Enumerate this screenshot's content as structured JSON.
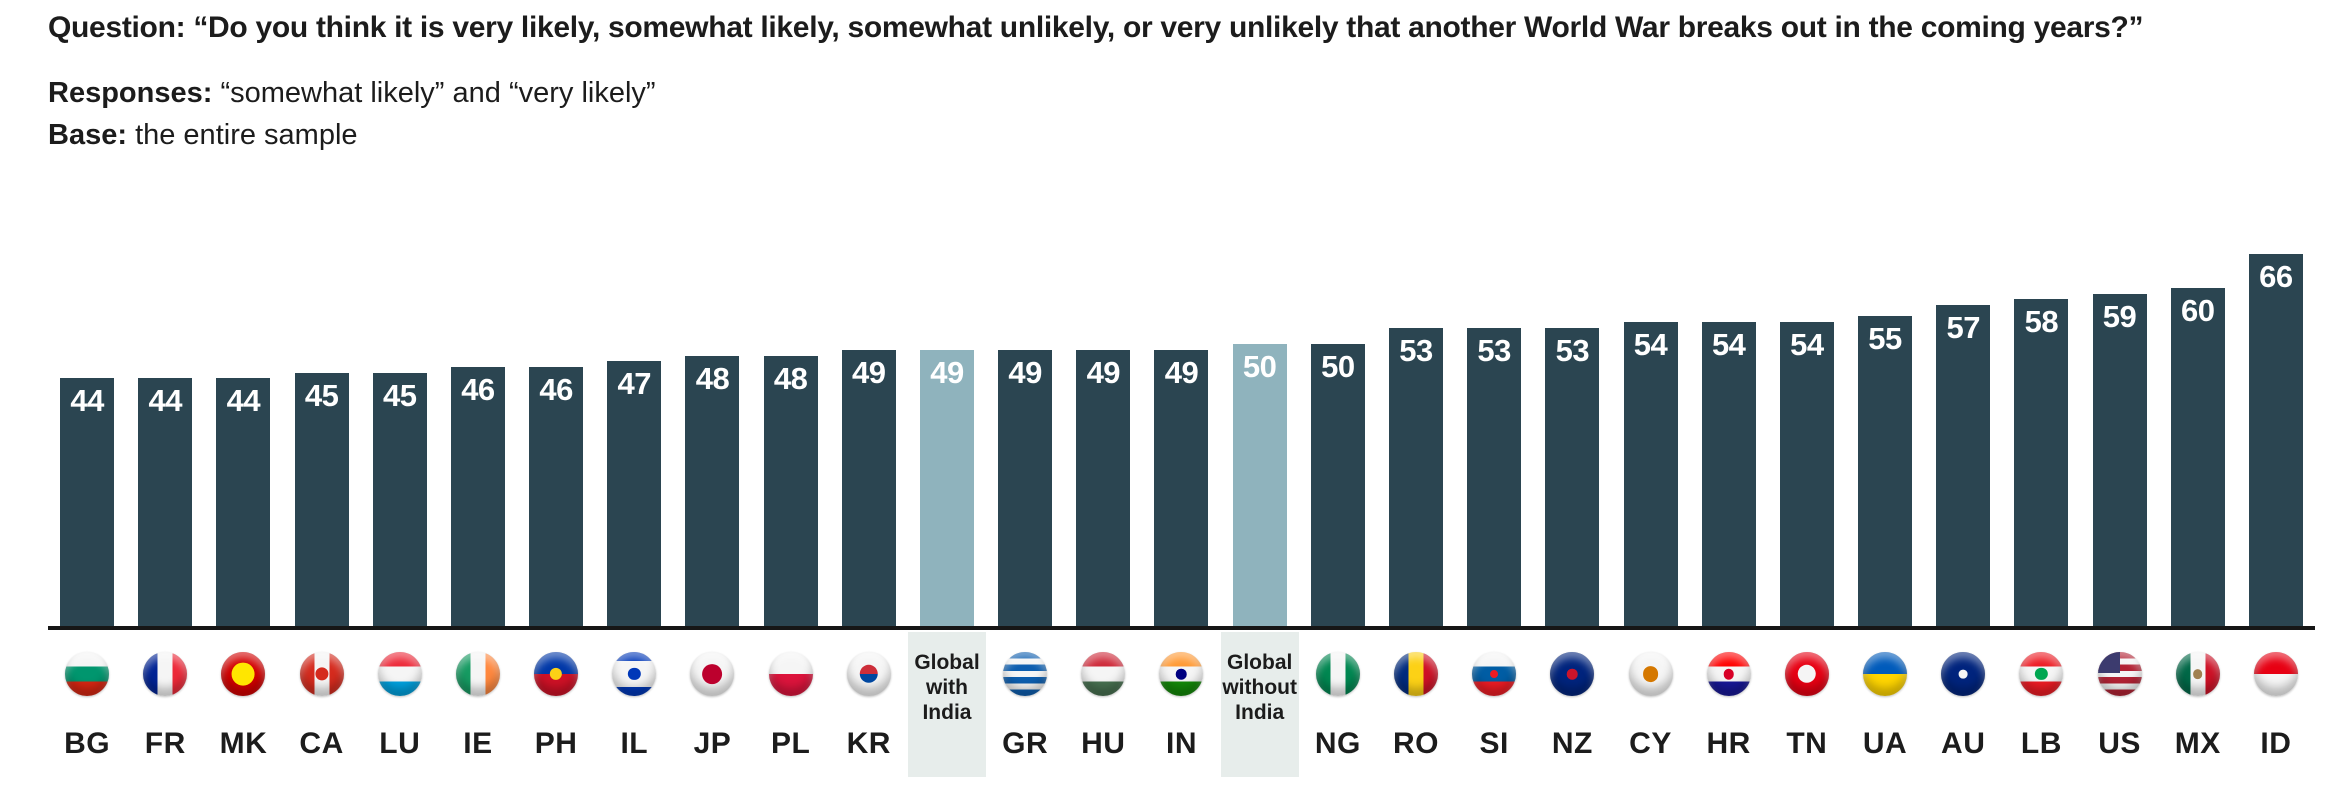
{
  "header": {
    "question_label": "Question:",
    "question_text": "“Do you think it is very likely, somewhat likely, somewhat unlikely, or very unlikely that another World War breaks out in the coming years?”",
    "responses_label": "Responses:",
    "responses_text": "“somewhat likely” and “very likely”",
    "base_label": "Base:",
    "base_text": "the entire sample"
  },
  "colors": {
    "bar_country": "#2B4551",
    "bar_global": "#8FB3BD",
    "highlight_column_bg": "#E7EDEB",
    "axis_line": "#161616",
    "bar_value_text": "#FFFFFF",
    "text": "#1C1C1C"
  },
  "chart_data": {
    "type": "bar",
    "title": "Question: “Do you think it is very likely, somewhat likely, somewhat unlikely, or very unlikely that another World War breaks out in the coming years?”",
    "subtitle": "Responses: “somewhat likely” and “very likely”",
    "note": "Base: the entire sample",
    "xlabel": "",
    "ylabel": "",
    "ylim": [
      0,
      66
    ],
    "grid": false,
    "legend": false,
    "data_labels": "inside bar top, white bold",
    "highlighted_categories": [
      "Global with India",
      "Global without India"
    ],
    "categories": [
      "BG",
      "FR",
      "MK",
      "CA",
      "LU",
      "IE",
      "PH",
      "IL",
      "JP",
      "PL",
      "KR",
      "Global with India",
      "GR",
      "HU",
      "IN",
      "Global without India",
      "NG",
      "RO",
      "SI",
      "NZ",
      "CY",
      "HR",
      "TN",
      "UA",
      "AU",
      "LB",
      "US",
      "MX",
      "ID"
    ],
    "values": [
      44,
      44,
      44,
      45,
      45,
      46,
      46,
      47,
      48,
      48,
      49,
      49,
      49,
      49,
      49,
      50,
      50,
      53,
      53,
      53,
      54,
      54,
      54,
      55,
      57,
      58,
      59,
      60,
      66
    ]
  },
  "bars": [
    {
      "id": "bg",
      "label": "BG",
      "value": 44,
      "type": "country",
      "flag": {
        "dir": "h",
        "stripes": [
          "#F5F5F5",
          "#00966E",
          "#D62612"
        ]
      }
    },
    {
      "id": "fr",
      "label": "FR",
      "value": 44,
      "type": "country",
      "flag": {
        "dir": "v",
        "stripes": [
          "#002395",
          "#F5F5F5",
          "#ED2939"
        ]
      }
    },
    {
      "id": "mk",
      "label": "MK",
      "value": 44,
      "type": "country",
      "flag": {
        "dir": "h",
        "stripes": [
          "#D20000"
        ],
        "dot": "#FFE600",
        "dot_size": 52
      }
    },
    {
      "id": "ca",
      "label": "CA",
      "value": 45,
      "type": "country",
      "flag": {
        "dir": "v",
        "stripes": [
          "#D52B1E",
          "#F5F5F5",
          "#D52B1E"
        ],
        "dot": "#D52B1E",
        "dot_size": 30
      }
    },
    {
      "id": "lu",
      "label": "LU",
      "value": 45,
      "type": "country",
      "flag": {
        "dir": "h",
        "stripes": [
          "#ED2939",
          "#F5F5F5",
          "#00A1DE"
        ]
      }
    },
    {
      "id": "ie",
      "label": "IE",
      "value": 46,
      "type": "country",
      "flag": {
        "dir": "v",
        "stripes": [
          "#169B62",
          "#F5F5F5",
          "#FF883E"
        ]
      }
    },
    {
      "id": "ph",
      "label": "PH",
      "value": 46,
      "type": "country",
      "flag": {
        "dir": "h",
        "stripes": [
          "#0038A8",
          "#CE1126"
        ],
        "dot": "#FCD116",
        "dot_size": 28
      }
    },
    {
      "id": "il",
      "label": "IL",
      "value": 47,
      "type": "country",
      "flag": {
        "dir": "h",
        "stripes": [
          "#0038B8",
          "#F5F5F5",
          "#F5F5F5",
          "#F5F5F5",
          "#0038B8"
        ],
        "dot": "#0038B8",
        "dot_size": 28
      }
    },
    {
      "id": "jp",
      "label": "JP",
      "value": 48,
      "type": "country",
      "flag": {
        "dir": "h",
        "stripes": [
          "#F5F5F5"
        ],
        "dot": "#BC002D",
        "dot_size": 45
      }
    },
    {
      "id": "pl",
      "label": "PL",
      "value": 48,
      "type": "country",
      "flag": {
        "dir": "h",
        "stripes": [
          "#F5F5F5",
          "#DC143C"
        ]
      }
    },
    {
      "id": "kr",
      "label": "KR",
      "value": 49,
      "type": "country",
      "flag": {
        "dir": "h",
        "stripes": [
          "#F5F5F5"
        ],
        "dot": [
          "#CD2E3A",
          "#0047A0"
        ],
        "dot_size": 42
      }
    },
    {
      "id": "global-with-india",
      "label": "Global with India",
      "value": 49,
      "type": "global"
    },
    {
      "id": "gr",
      "label": "GR",
      "value": 49,
      "type": "country",
      "flag": {
        "dir": "h",
        "stripes": [
          "#0D5EAF",
          "#F5F5F5",
          "#0D5EAF",
          "#F5F5F5",
          "#0D5EAF",
          "#F5F5F5",
          "#0D5EAF"
        ]
      }
    },
    {
      "id": "hu",
      "label": "HU",
      "value": 49,
      "type": "country",
      "flag": {
        "dir": "h",
        "stripes": [
          "#CE2939",
          "#F5F5F5",
          "#477050"
        ]
      }
    },
    {
      "id": "in",
      "label": "IN",
      "value": 49,
      "type": "country",
      "flag": {
        "dir": "h",
        "stripes": [
          "#FF9933",
          "#F5F5F5",
          "#138808"
        ],
        "dot": "#000080",
        "dot_size": 24
      }
    },
    {
      "id": "global-without-india",
      "label": "Global without India",
      "value": 50,
      "type": "global"
    },
    {
      "id": "ng",
      "label": "NG",
      "value": 50,
      "type": "country",
      "flag": {
        "dir": "v",
        "stripes": [
          "#008751",
          "#F5F5F5",
          "#008751"
        ]
      }
    },
    {
      "id": "ro",
      "label": "RO",
      "value": 53,
      "type": "country",
      "flag": {
        "dir": "v",
        "stripes": [
          "#002B7F",
          "#FCD116",
          "#CE1126"
        ]
      }
    },
    {
      "id": "si",
      "label": "SI",
      "value": 53,
      "type": "country",
      "flag": {
        "dir": "h",
        "stripes": [
          "#F5F5F5",
          "#005DA4",
          "#ED1C24"
        ],
        "dot": "#ED1C24",
        "dot_size": 18
      }
    },
    {
      "id": "nz",
      "label": "NZ",
      "value": 53,
      "type": "country",
      "flag": {
        "dir": "h",
        "stripes": [
          "#00247D"
        ],
        "dot": "#CC142B",
        "dot_size": 24
      }
    },
    {
      "id": "cy",
      "label": "CY",
      "value": 54,
      "type": "country",
      "flag": {
        "dir": "h",
        "stripes": [
          "#F5F5F5"
        ],
        "dot": "#D57800",
        "dot_size": 36
      }
    },
    {
      "id": "hr",
      "label": "HR",
      "value": 54,
      "type": "country",
      "flag": {
        "dir": "h",
        "stripes": [
          "#FF0000",
          "#F5F5F5",
          "#171796"
        ],
        "dot": "#D80027",
        "dot_size": 24
      }
    },
    {
      "id": "tn",
      "label": "TN",
      "value": 54,
      "type": "country",
      "flag": {
        "dir": "h",
        "stripes": [
          "#E70013"
        ],
        "dot": "#F5F5F5",
        "dot_size": 42
      }
    },
    {
      "id": "ua",
      "label": "UA",
      "value": 55,
      "type": "country",
      "flag": {
        "dir": "h",
        "stripes": [
          "#005BBB",
          "#FFD500"
        ]
      }
    },
    {
      "id": "au",
      "label": "AU",
      "value": 57,
      "type": "country",
      "flag": {
        "dir": "h",
        "stripes": [
          "#00247D"
        ],
        "dot": "#F5F5F5",
        "dot_size": 20
      }
    },
    {
      "id": "lb",
      "label": "LB",
      "value": 58,
      "type": "country",
      "flag": {
        "dir": "h",
        "stripes": [
          "#ED1C24",
          "#F5F5F5",
          "#ED1C24"
        ],
        "dot": "#00A651",
        "dot_size": 28
      }
    },
    {
      "id": "us",
      "label": "US",
      "value": 59,
      "type": "country",
      "flag": {
        "dir": "h",
        "stripes": [
          "#B22234",
          "#F5F5F5",
          "#B22234",
          "#F5F5F5",
          "#B22234",
          "#F5F5F5",
          "#B22234"
        ],
        "canton": "#3C3B6E"
      }
    },
    {
      "id": "mx",
      "label": "MX",
      "value": 60,
      "type": "country",
      "flag": {
        "dir": "v",
        "stripes": [
          "#006847",
          "#F5F5F5",
          "#CE1126"
        ],
        "dot": "#A08050",
        "dot_size": 22
      }
    },
    {
      "id": "id",
      "label": "ID",
      "value": 66,
      "type": "country",
      "flag": {
        "dir": "h",
        "stripes": [
          "#E70013",
          "#F5F5F5"
        ]
      }
    }
  ]
}
